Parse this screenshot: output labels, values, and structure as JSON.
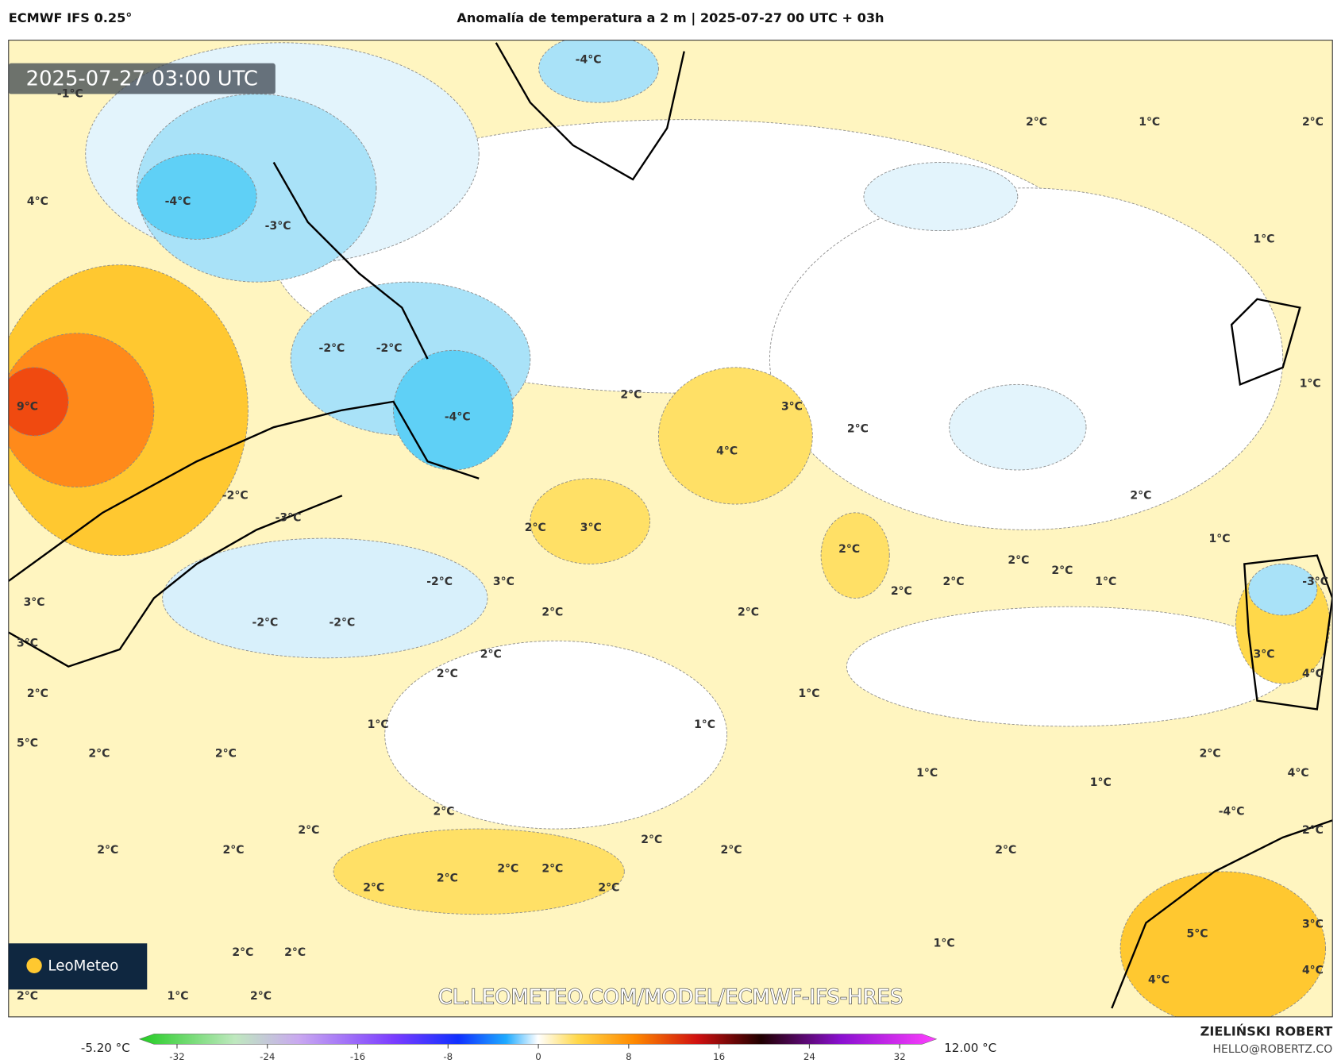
{
  "header": {
    "model": "ECMWF IFS 0.25°",
    "title": "Anomalía de temperatura a 2 m | 2025-07-27 00 UTC + 03h"
  },
  "timestamp": "2025-07-27 03:00 UTC",
  "url": "CL.LEOMETEO.COM/MODEL/ECMWF-IFS-HRES",
  "logo": "LeoMeteo",
  "map_labels": [
    "-1°C",
    "-4°C",
    "4°C",
    "-4°C",
    "-3°C",
    "2°C",
    "1°C",
    "2°C",
    "1°C",
    "-2°C",
    "-2°C",
    "9°C",
    "2°C",
    "3°C",
    "2°C",
    "-4°C",
    "4°C",
    "1°C",
    "-2°C",
    "2°C",
    "-3°C",
    "2°C",
    "3°C",
    "1°C",
    "2°C",
    "2°C",
    "2°C",
    "1°C",
    "-2°C",
    "3°C",
    "2°C",
    "2°C",
    "3°C",
    "2°C",
    "2°C",
    "-3°C",
    "-2°C",
    "-2°C",
    "3°C",
    "2°C",
    "3°C",
    "2°C",
    "4°C",
    "2°C",
    "1°C",
    "1°C",
    "1°C",
    "5°C",
    "2°C",
    "2°C",
    "2°C",
    "1°C",
    "1°C",
    "4°C",
    "-4°C",
    "2°C",
    "2°C",
    "2°C",
    "2°C",
    "2°C",
    "2°C",
    "2°C",
    "2°C",
    "2°C",
    "2°C",
    "2°C",
    "2°C",
    "2°C",
    "3°C",
    "5°C",
    "1°C",
    "2°C",
    "2°C",
    "4°C",
    "4°C",
    "2°C",
    "1°C",
    "2°C"
  ],
  "colorbar": {
    "min_label": "-5.20 °C",
    "max_label": "12.00 °C",
    "lim": [
      -32,
      32
    ],
    "ticks": [
      -32,
      -24,
      -16,
      -8,
      0,
      8,
      16,
      24,
      32
    ]
  },
  "credits": {
    "author": "ZIELIŃSKI ROBERT",
    "email": "HELLO@ROBERTZ.CO"
  }
}
